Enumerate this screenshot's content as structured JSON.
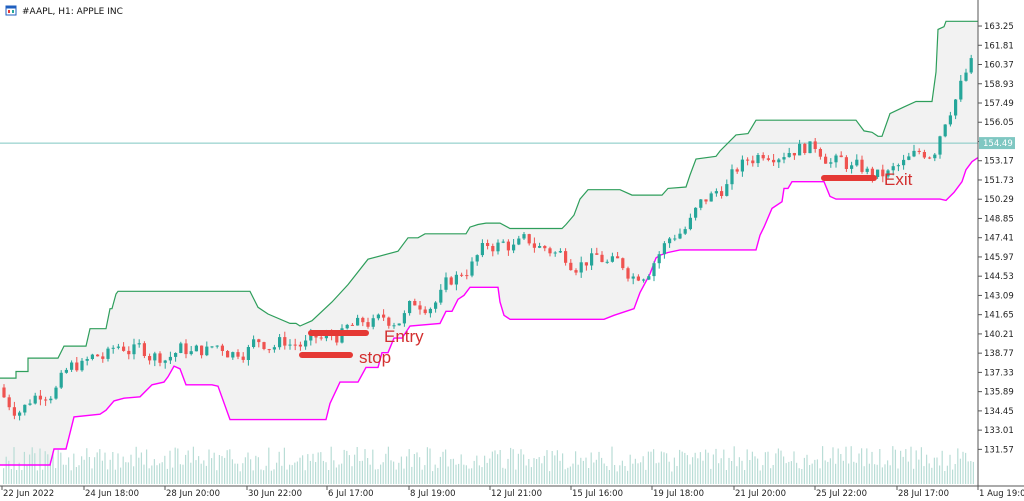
{
  "window": {
    "title": "#AAPL, H1:  APPLE INC",
    "icon": "chart-window-icon"
  },
  "colors": {
    "bull": "#26a69a",
    "bear": "#ef5350",
    "bull_entry": "#1e88e5",
    "bear_entry": "#0d1fb8",
    "exit_marker": "#e91e8c",
    "upper_channel": "#2e9e5b",
    "lower_channel": "#ff00ff",
    "channel_fill": "#f2f2f2",
    "price_line": "#7fc7c2",
    "volume": "#b9ddd6",
    "annotation": "#e53935"
  },
  "chart_data": {
    "type": "candlestick",
    "symbol": "#AAPL",
    "timeframe": "H1",
    "ylim": [
      130.4,
      164.0
    ],
    "y_ticks": [
      "163.25",
      "161.81",
      "160.37",
      "158.93",
      "157.49",
      "156.05",
      "154.61",
      "153.17",
      "151.73",
      "150.29",
      "148.85",
      "147.41",
      "145.97",
      "144.53",
      "143.09",
      "141.65",
      "140.21",
      "138.77",
      "137.33",
      "135.89",
      "134.45",
      "133.01",
      "131.57"
    ],
    "x_tick_labels": [
      "22 Jun 2022",
      "24 Jun 18:00",
      "28 Jun 20:00",
      "30 Jun 22:00",
      "6 Jul 17:00",
      "8 Jul 19:00",
      "12 Jul 21:00",
      "15 Jul 16:00",
      "19 Jul 18:00",
      "21 Jul 20:00",
      "25 Jul 22:00",
      "28 Jul 17:00",
      "1 Aug 19:00"
    ],
    "current_price": "154.49",
    "upper_channel": [
      [
        0,
        136.9
      ],
      [
        16,
        136.9
      ],
      [
        16,
        137.4
      ],
      [
        28,
        137.4
      ],
      [
        28,
        138.4
      ],
      [
        58,
        138.4
      ],
      [
        64,
        139.3
      ],
      [
        86,
        139.3
      ],
      [
        90,
        140.6
      ],
      [
        106,
        140.6
      ],
      [
        110,
        142.1
      ],
      [
        112,
        142.1
      ],
      [
        116,
        143.2
      ],
      [
        118,
        143.4
      ],
      [
        250,
        143.4
      ],
      [
        258,
        142.2
      ],
      [
        268,
        141.7
      ],
      [
        290,
        141.0
      ],
      [
        296,
        141.0
      ],
      [
        300,
        140.8
      ],
      [
        312,
        141.2
      ],
      [
        332,
        142.6
      ],
      [
        348,
        143.9
      ],
      [
        368,
        145.8
      ],
      [
        398,
        146.4
      ],
      [
        408,
        147.4
      ],
      [
        418,
        147.4
      ],
      [
        425,
        147.7
      ],
      [
        466,
        147.7
      ],
      [
        470,
        148.2
      ],
      [
        478,
        148.4
      ],
      [
        486,
        148.5
      ],
      [
        500,
        148.5
      ],
      [
        510,
        148.1
      ],
      [
        562,
        148.1
      ],
      [
        566,
        148.4
      ],
      [
        574,
        149.1
      ],
      [
        580,
        150.3
      ],
      [
        588,
        151.0
      ],
      [
        620,
        151.0
      ],
      [
        632,
        150.6
      ],
      [
        662,
        150.6
      ],
      [
        668,
        151.1
      ],
      [
        686,
        151.2
      ],
      [
        690,
        152.1
      ],
      [
        696,
        153.3
      ],
      [
        716,
        153.5
      ],
      [
        720,
        153.9
      ],
      [
        736,
        155.1
      ],
      [
        748,
        155.2
      ],
      [
        756,
        156.2
      ],
      [
        856,
        156.2
      ],
      [
        864,
        155.4
      ],
      [
        872,
        155.3
      ],
      [
        878,
        155.0
      ],
      [
        882,
        155.0
      ],
      [
        890,
        156.7
      ],
      [
        904,
        157.2
      ],
      [
        916,
        157.6
      ],
      [
        932,
        157.6
      ],
      [
        936,
        159.8
      ],
      [
        938,
        163.0
      ],
      [
        944,
        163.2
      ],
      [
        946,
        163.6
      ],
      [
        978,
        163.6
      ]
    ],
    "lower_channel": [
      [
        0,
        130.4
      ],
      [
        50,
        130.4
      ],
      [
        54,
        131.6
      ],
      [
        66,
        131.6
      ],
      [
        74,
        134.0
      ],
      [
        100,
        134.2
      ],
      [
        106,
        134.5
      ],
      [
        114,
        135.2
      ],
      [
        124,
        135.4
      ],
      [
        140,
        135.5
      ],
      [
        152,
        136.4
      ],
      [
        164,
        136.6
      ],
      [
        168,
        137.0
      ],
      [
        174,
        137.8
      ],
      [
        180,
        137.6
      ],
      [
        186,
        136.4
      ],
      [
        196,
        136.4
      ],
      [
        212,
        136.4
      ],
      [
        218,
        136.3
      ],
      [
        230,
        133.8
      ],
      [
        326,
        133.8
      ],
      [
        330,
        135.0
      ],
      [
        340,
        136.6
      ],
      [
        358,
        136.6
      ],
      [
        366,
        137.7
      ],
      [
        378,
        137.7
      ],
      [
        382,
        138.8
      ],
      [
        388,
        138.8
      ],
      [
        394,
        139.9
      ],
      [
        402,
        139.9
      ],
      [
        410,
        140.8
      ],
      [
        440,
        141.0
      ],
      [
        446,
        141.9
      ],
      [
        452,
        141.9
      ],
      [
        458,
        142.8
      ],
      [
        464,
        143.1
      ],
      [
        470,
        143.7
      ],
      [
        498,
        143.7
      ],
      [
        500,
        142.6
      ],
      [
        504,
        141.6
      ],
      [
        510,
        141.3
      ],
      [
        604,
        141.3
      ],
      [
        614,
        141.6
      ],
      [
        634,
        142.1
      ],
      [
        640,
        143.3
      ],
      [
        650,
        144.7
      ],
      [
        656,
        145.9
      ],
      [
        660,
        146.1
      ],
      [
        668,
        146.3
      ],
      [
        680,
        146.5
      ],
      [
        686,
        146.5
      ],
      [
        706,
        146.5
      ],
      [
        712,
        146.5
      ],
      [
        756,
        146.5
      ],
      [
        760,
        147.6
      ],
      [
        764,
        148.2
      ],
      [
        772,
        149.6
      ],
      [
        782,
        150.1
      ],
      [
        784,
        151.1
      ],
      [
        788,
        151.1
      ],
      [
        792,
        151.6
      ],
      [
        800,
        151.6
      ],
      [
        824,
        151.6
      ],
      [
        830,
        150.5
      ],
      [
        836,
        150.3
      ],
      [
        844,
        150.3
      ],
      [
        860,
        150.3
      ],
      [
        900,
        150.3
      ],
      [
        940,
        150.3
      ],
      [
        946,
        150.2
      ],
      [
        954,
        150.8
      ],
      [
        962,
        151.6
      ],
      [
        966,
        152.5
      ],
      [
        972,
        153.1
      ],
      [
        978,
        153.4
      ]
    ],
    "annotations": [
      {
        "label": "Entry"
      },
      {
        "label": "stop"
      },
      {
        "label": "Exit"
      }
    ]
  }
}
